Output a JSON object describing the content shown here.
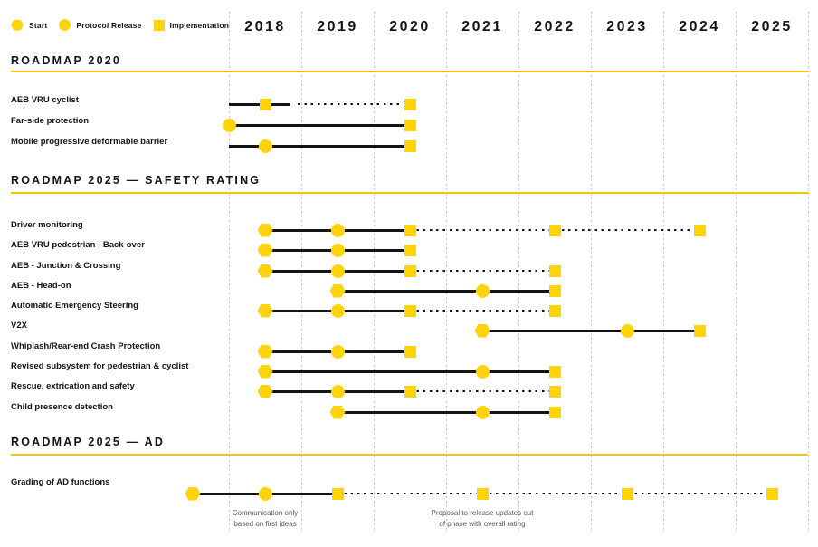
{
  "colors": {
    "marker_yellow": "#ffd30a",
    "rule_yellow": "#f2c500",
    "line_black": "#141414",
    "grid_gray": "#c8c8c8",
    "annotation_gray": "#57585b"
  },
  "legend": [
    {
      "shape": "hexagon",
      "label": "Start"
    },
    {
      "shape": "circle",
      "label": "Protocol Release"
    },
    {
      "shape": "square",
      "label": "Implementation"
    }
  ],
  "years": [
    "2018",
    "2019",
    "2020",
    "2021",
    "2022",
    "2023",
    "2024",
    "2025"
  ],
  "chart_data": {
    "type": "gantt",
    "title": "",
    "x_axis": {
      "unit": "year",
      "ticks": [
        2018,
        2019,
        2020,
        2021,
        2022,
        2023,
        2024,
        2025
      ],
      "range": [
        2017.4,
        2026
      ]
    },
    "legend": {
      "hexagon": "Start",
      "circle": "Protocol Release",
      "square": "Implementation"
    },
    "line_styles": {
      "solid": "confirmed timeline",
      "dotted": "tentative timeline"
    },
    "sections": [
      {
        "title": "ROADMAP 2020",
        "rows": [
          {
            "label": "AEB VRU cyclist",
            "segments": [
              {
                "from": 2018.0,
                "to": 2018.85,
                "style": "solid"
              },
              {
                "from": 2018.95,
                "to": 2020.5,
                "style": "dotted"
              }
            ],
            "markers": [
              {
                "shape": "square",
                "at": 2018.5
              },
              {
                "shape": "square",
                "at": 2020.5
              }
            ]
          },
          {
            "label": "Far-side protection",
            "segments": [
              {
                "from": 2018.0,
                "to": 2020.5,
                "style": "solid"
              }
            ],
            "markers": [
              {
                "shape": "circle",
                "at": 2018.0
              },
              {
                "shape": "square",
                "at": 2020.5
              }
            ]
          },
          {
            "label": "Mobile progressive deformable barrier",
            "segments": [
              {
                "from": 2018.0,
                "to": 2020.5,
                "style": "solid"
              }
            ],
            "markers": [
              {
                "shape": "circle",
                "at": 2018.5
              },
              {
                "shape": "square",
                "at": 2020.5
              }
            ]
          }
        ]
      },
      {
        "title": "ROADMAP 2025 — SAFETY RATING",
        "rows": [
          {
            "label": "Driver monitoring",
            "segments": [
              {
                "from": 2018.5,
                "to": 2020.5,
                "style": "solid"
              },
              {
                "from": 2020.5,
                "to": 2024.5,
                "style": "dotted"
              }
            ],
            "markers": [
              {
                "shape": "hexagon",
                "at": 2018.5
              },
              {
                "shape": "circle",
                "at": 2019.5
              },
              {
                "shape": "square",
                "at": 2020.5
              },
              {
                "shape": "square",
                "at": 2022.5
              },
              {
                "shape": "square",
                "at": 2024.5
              }
            ]
          },
          {
            "label": "AEB VRU pedestrian - Back-over",
            "segments": [
              {
                "from": 2018.5,
                "to": 2020.5,
                "style": "solid"
              }
            ],
            "markers": [
              {
                "shape": "hexagon",
                "at": 2018.5
              },
              {
                "shape": "circle",
                "at": 2019.5
              },
              {
                "shape": "square",
                "at": 2020.5
              }
            ]
          },
          {
            "label": "AEB - Junction & Crossing",
            "segments": [
              {
                "from": 2018.5,
                "to": 2020.5,
                "style": "solid"
              },
              {
                "from": 2020.5,
                "to": 2022.5,
                "style": "dotted"
              }
            ],
            "markers": [
              {
                "shape": "hexagon",
                "at": 2018.5
              },
              {
                "shape": "circle",
                "at": 2019.5
              },
              {
                "shape": "square",
                "at": 2020.5
              },
              {
                "shape": "square",
                "at": 2022.5
              }
            ]
          },
          {
            "label": "AEB - Head-on",
            "segments": [
              {
                "from": 2019.5,
                "to": 2022.5,
                "style": "solid"
              }
            ],
            "markers": [
              {
                "shape": "hexagon",
                "at": 2019.5
              },
              {
                "shape": "circle",
                "at": 2021.5
              },
              {
                "shape": "square",
                "at": 2022.5
              }
            ]
          },
          {
            "label": "Automatic Emergency Steering",
            "segments": [
              {
                "from": 2018.5,
                "to": 2020.5,
                "style": "solid"
              },
              {
                "from": 2020.5,
                "to": 2022.5,
                "style": "dotted"
              }
            ],
            "markers": [
              {
                "shape": "hexagon",
                "at": 2018.5
              },
              {
                "shape": "circle",
                "at": 2019.5
              },
              {
                "shape": "square",
                "at": 2020.5
              },
              {
                "shape": "square",
                "at": 2022.5
              }
            ]
          },
          {
            "label": "V2X",
            "segments": [
              {
                "from": 2021.5,
                "to": 2024.5,
                "style": "solid"
              }
            ],
            "markers": [
              {
                "shape": "hexagon",
                "at": 2021.5
              },
              {
                "shape": "circle",
                "at": 2023.5
              },
              {
                "shape": "square",
                "at": 2024.5
              }
            ]
          },
          {
            "label": "Whiplash/Rear-end Crash Protection",
            "segments": [
              {
                "from": 2018.5,
                "to": 2020.5,
                "style": "solid"
              }
            ],
            "markers": [
              {
                "shape": "hexagon",
                "at": 2018.5
              },
              {
                "shape": "circle",
                "at": 2019.5
              },
              {
                "shape": "square",
                "at": 2020.5
              }
            ]
          },
          {
            "label": "Revised subsystem for pedestrian & cyclist",
            "segments": [
              {
                "from": 2018.5,
                "to": 2022.5,
                "style": "solid"
              }
            ],
            "markers": [
              {
                "shape": "hexagon",
                "at": 2018.5
              },
              {
                "shape": "circle",
                "at": 2021.5
              },
              {
                "shape": "square",
                "at": 2022.5
              }
            ]
          },
          {
            "label": "Rescue, extrication and safety",
            "segments": [
              {
                "from": 2018.5,
                "to": 2020.5,
                "style": "solid"
              },
              {
                "from": 2020.5,
                "to": 2022.5,
                "style": "dotted"
              }
            ],
            "markers": [
              {
                "shape": "hexagon",
                "at": 2018.5
              },
              {
                "shape": "circle",
                "at": 2019.5
              },
              {
                "shape": "square",
                "at": 2020.5
              },
              {
                "shape": "square",
                "at": 2022.5
              }
            ]
          },
          {
            "label": "Child presence detection",
            "segments": [
              {
                "from": 2019.5,
                "to": 2022.5,
                "style": "solid"
              }
            ],
            "markers": [
              {
                "shape": "hexagon",
                "at": 2019.5
              },
              {
                "shape": "circle",
                "at": 2021.5
              },
              {
                "shape": "square",
                "at": 2022.5
              }
            ]
          }
        ]
      },
      {
        "title": "ROADMAP 2025 — AD",
        "rows": [
          {
            "label": "Grading of AD functions",
            "segments": [
              {
                "from": 2017.5,
                "to": 2019.5,
                "style": "solid"
              },
              {
                "from": 2019.5,
                "to": 2025.5,
                "style": "dotted"
              }
            ],
            "markers": [
              {
                "shape": "hexagon",
                "at": 2017.5
              },
              {
                "shape": "circle",
                "at": 2018.5
              },
              {
                "shape": "square",
                "at": 2019.5
              },
              {
                "shape": "square",
                "at": 2021.5
              },
              {
                "shape": "square",
                "at": 2023.5
              },
              {
                "shape": "square",
                "at": 2025.5
              }
            ]
          }
        ]
      }
    ],
    "annotations": [
      {
        "lines": [
          "Communication only",
          "based on first ideas"
        ],
        "at": 2018.5
      },
      {
        "lines": [
          "Proposal to release updates out",
          "of phase with overall rating"
        ],
        "at": 2021.5
      }
    ]
  }
}
